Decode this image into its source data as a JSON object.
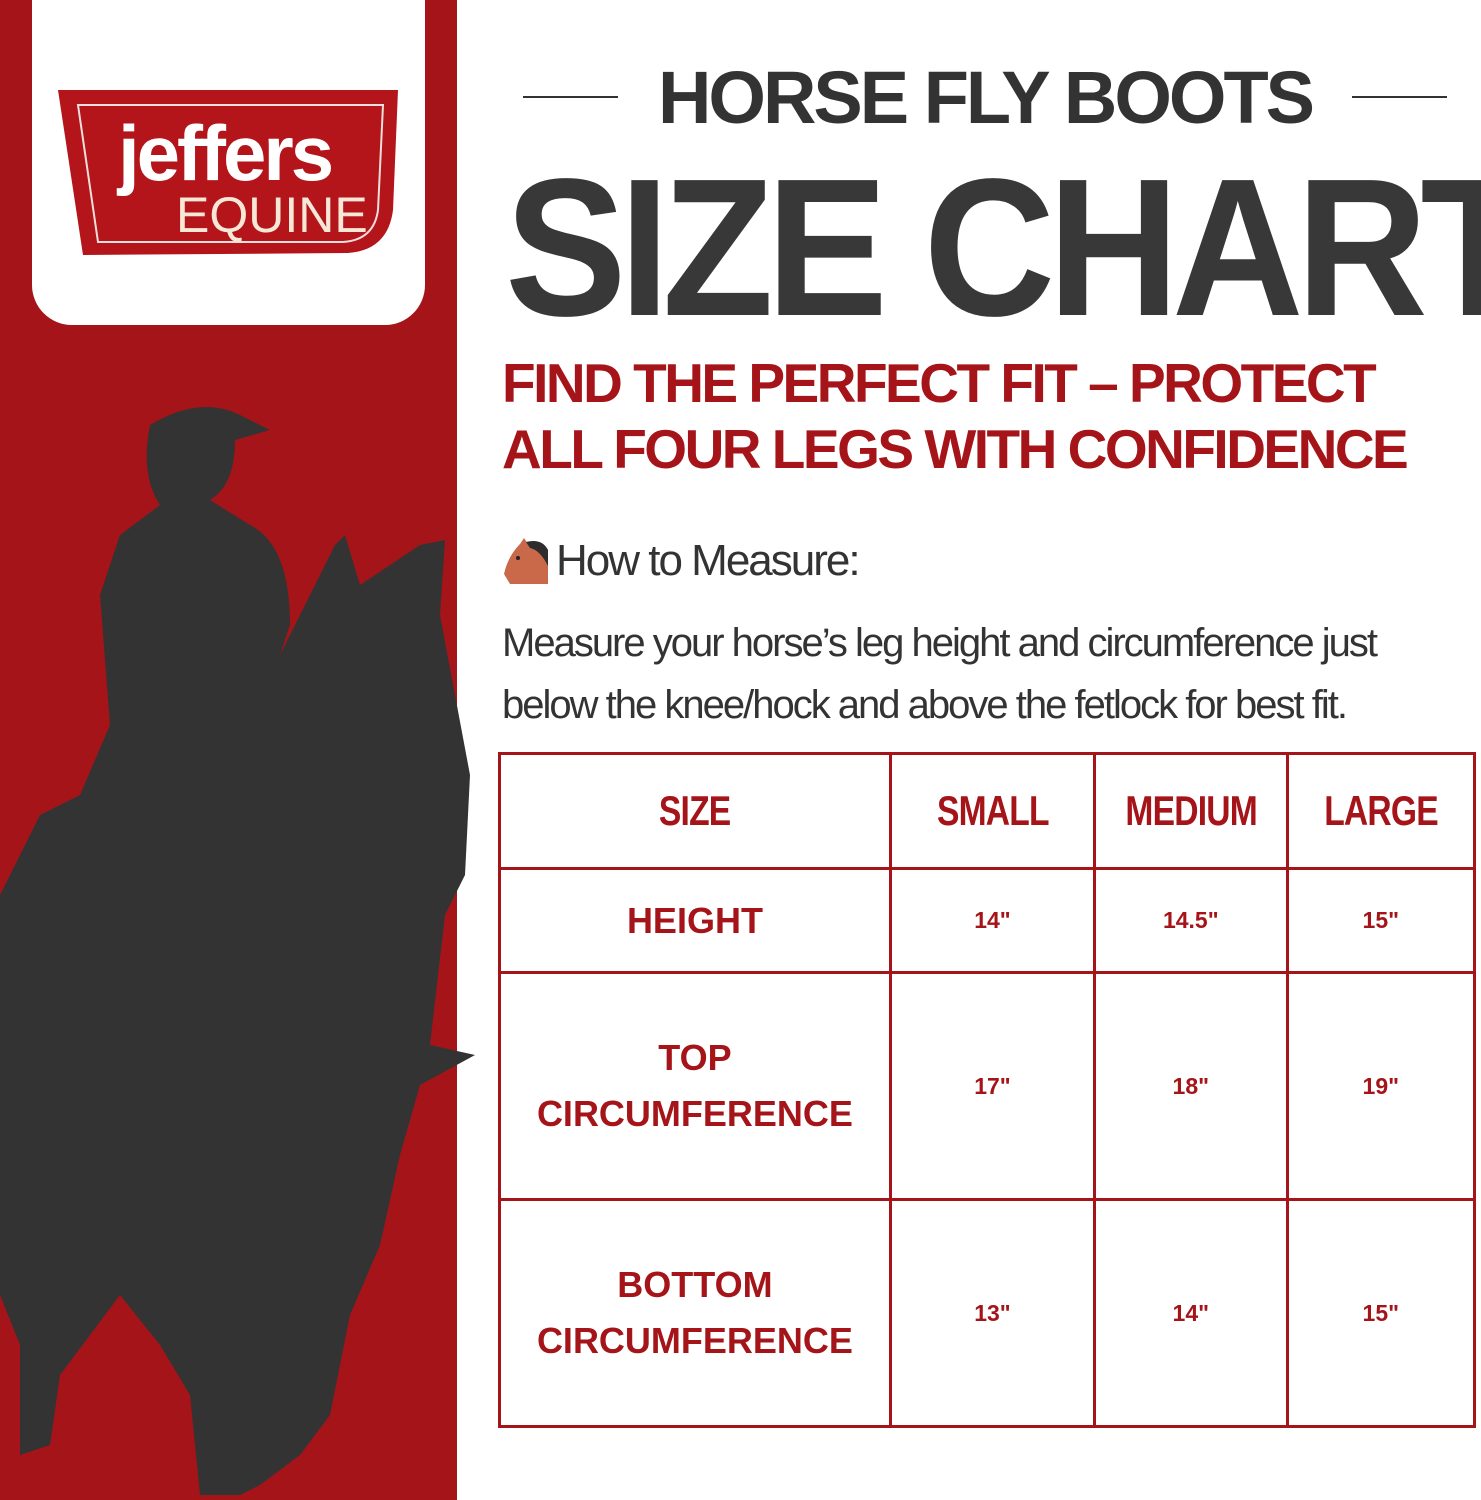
{
  "brand": {
    "logo_main": "jeffers",
    "logo_sub": "EQUINE",
    "colors": {
      "red": "#a51419",
      "dark": "#333333"
    }
  },
  "header": {
    "subtitle": "HORSE FLY BOOTS",
    "title": "SIZE CHART",
    "tagline": "FIND THE PERFECT FIT – PROTECT ALL FOUR LEGS WITH CONFIDENCE"
  },
  "measure": {
    "icon": "horse-face-icon",
    "heading": "How to Measure:",
    "text": "Measure your horse’s leg height and circumference just below the knee/hock and above the fetlock for best fit."
  },
  "table": {
    "headers": [
      "SIZE",
      "SMALL",
      "MEDIUM",
      "LARGE"
    ],
    "rows": [
      {
        "label": "HEIGHT",
        "values": [
          "14\"",
          "14.5\"",
          "15\""
        ]
      },
      {
        "label": "TOP CIRCUMFERENCE",
        "values": [
          "17\"",
          "18\"",
          "19\""
        ]
      },
      {
        "label": "BOTTOM CIRCUMFERENCE",
        "values": [
          "13\"",
          "14\"",
          "15\""
        ]
      }
    ]
  }
}
